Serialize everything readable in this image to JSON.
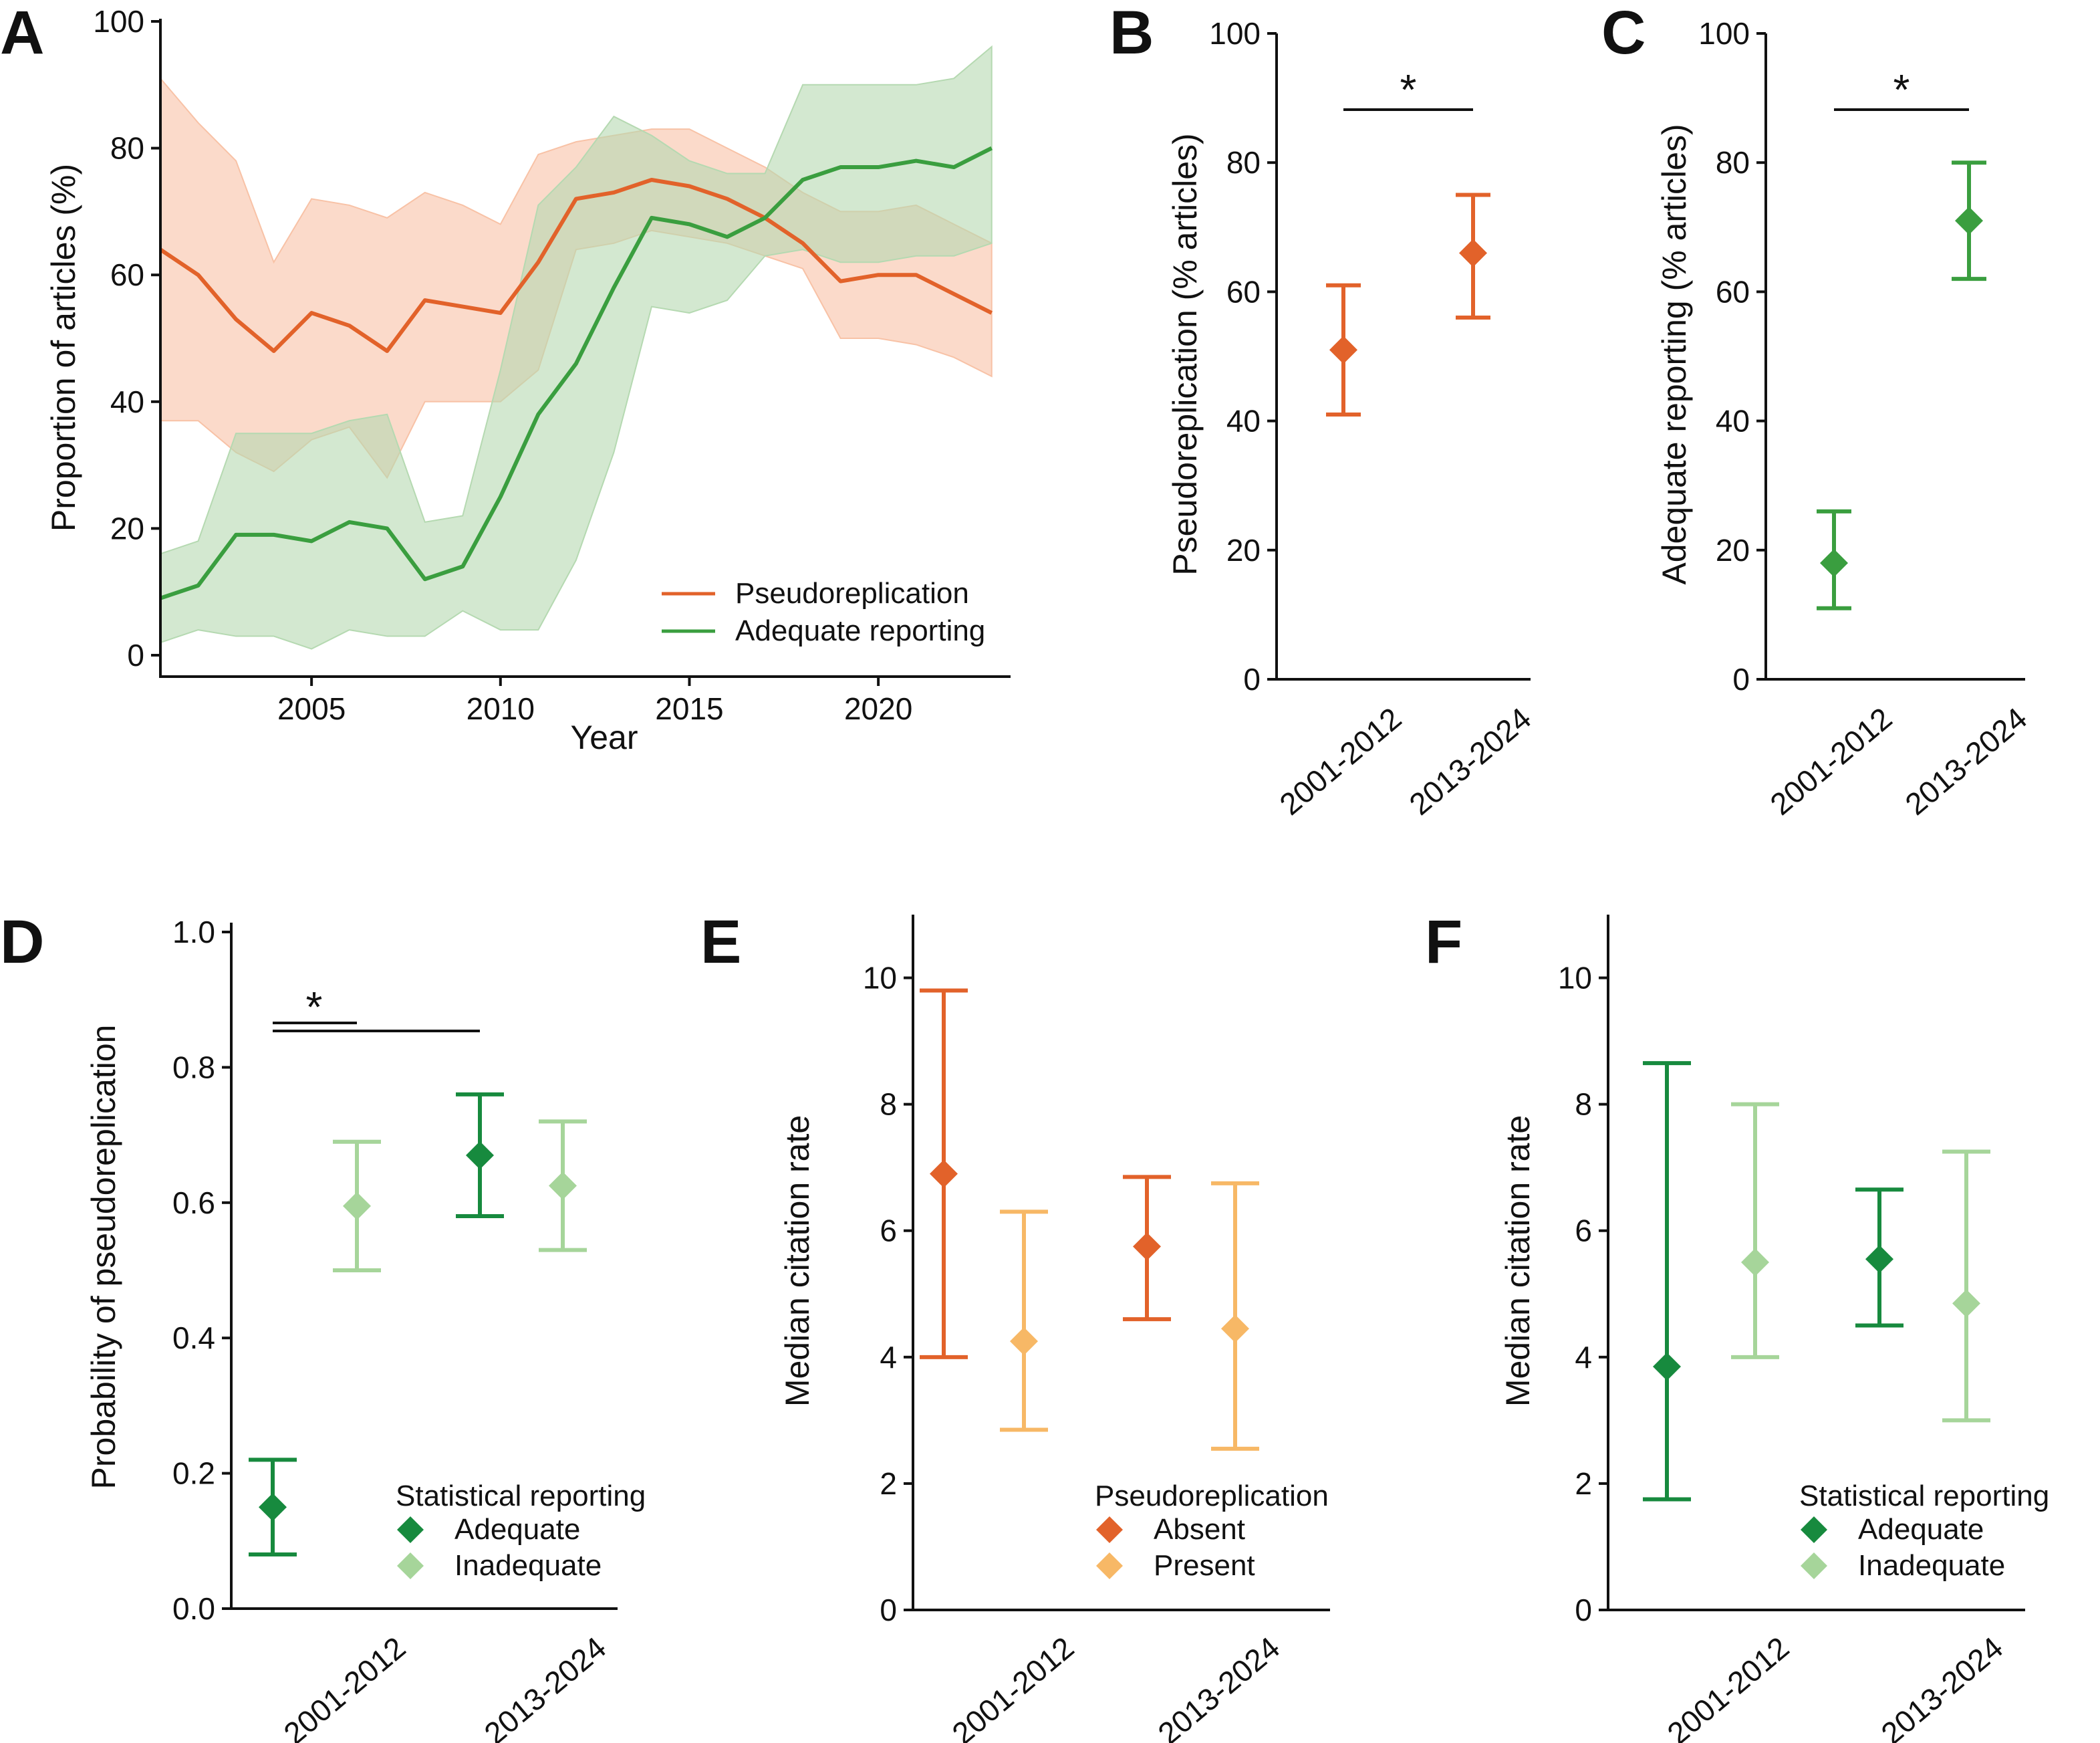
{
  "panels": {
    "A": {
      "letter": "A",
      "ylabel": "Proportion of articles (%)",
      "xlabel": "Year",
      "yticks": [
        "0",
        "20",
        "40",
        "60",
        "80",
        "100"
      ],
      "xticks": [
        "2005",
        "2010",
        "2015",
        "2020"
      ],
      "legend": [
        "Pseudoreplication",
        "Adequate reporting"
      ]
    },
    "B": {
      "letter": "B",
      "ylabel": "Pseudoreplication (% articles)",
      "yticks": [
        "0",
        "20",
        "40",
        "60",
        "80",
        "100"
      ],
      "xticks": [
        "2001-2012",
        "2013-2024"
      ],
      "star": "*"
    },
    "C": {
      "letter": "C",
      "ylabel": "Adequate reporting (% articles)",
      "yticks": [
        "0",
        "20",
        "40",
        "60",
        "80",
        "100"
      ],
      "xticks": [
        "2001-2012",
        "2013-2024"
      ],
      "star": "*"
    },
    "D": {
      "letter": "D",
      "ylabel": "Probability of pseudoreplication",
      "yticks": [
        "0.0",
        "0.2",
        "0.4",
        "0.6",
        "0.8",
        "1.0"
      ],
      "xticks": [
        "2001-2012",
        "2013-2024"
      ],
      "star": "*",
      "legend_title": "Statistical reporting",
      "legend": [
        "Adequate",
        "Inadequate"
      ]
    },
    "E": {
      "letter": "E",
      "ylabel": "Median citation rate",
      "yticks": [
        "0",
        "2",
        "4",
        "6",
        "8",
        "10"
      ],
      "xticks": [
        "2001-2012",
        "2013-2024"
      ],
      "legend_title": "Pseudoreplication",
      "legend": [
        "Absent",
        "Present"
      ]
    },
    "F": {
      "letter": "F",
      "ylabel": "Median citation rate",
      "yticks": [
        "0",
        "2",
        "4",
        "6",
        "8",
        "10"
      ],
      "xticks": [
        "2001-2012",
        "2013-2024"
      ],
      "legend_title": "Statistical reporting",
      "legend": [
        "Adequate",
        "Inadequate"
      ]
    }
  },
  "colors": {
    "orange": "#e2622a",
    "orange_band": "#f8c2a6",
    "green": "#3a9e3f",
    "green_band": "#b5d9b1",
    "dark_green": "#178a3e",
    "light_green": "#a6d59a",
    "light_orange": "#f7b866"
  },
  "chart_data": [
    {
      "panel": "A",
      "type": "line",
      "xlabel": "Year",
      "ylabel": "Proportion of articles (%)",
      "xlim": [
        2001,
        2023.5
      ],
      "ylim": [
        0,
        100
      ],
      "x": [
        2001,
        2002,
        2003,
        2004,
        2005,
        2006,
        2007,
        2008,
        2009,
        2010,
        2011,
        2012,
        2013,
        2014,
        2015,
        2016,
        2017,
        2018,
        2019,
        2020,
        2021,
        2022,
        2023
      ],
      "series": [
        {
          "name": "Pseudoreplication",
          "values": [
            64,
            60,
            53,
            48,
            54,
            52,
            48,
            56,
            55,
            54,
            62,
            72,
            73,
            75,
            74,
            72,
            69,
            65,
            59,
            60,
            60,
            57,
            54
          ],
          "lower": [
            37,
            37,
            32,
            29,
            34,
            36,
            28,
            40,
            40,
            40,
            45,
            64,
            65,
            67,
            66,
            65,
            63,
            61,
            50,
            50,
            49,
            47,
            44
          ],
          "upper": [
            91,
            84,
            78,
            62,
            72,
            71,
            69,
            73,
            71,
            68,
            79,
            81,
            82,
            83,
            83,
            80,
            77,
            73,
            70,
            70,
            71,
            68,
            65
          ]
        },
        {
          "name": "Adequate reporting",
          "values": [
            9,
            11,
            19,
            19,
            18,
            21,
            20,
            12,
            14,
            25,
            38,
            46,
            58,
            69,
            68,
            66,
            69,
            75,
            77,
            77,
            78,
            77,
            80
          ],
          "lower": [
            2,
            4,
            3,
            3,
            1,
            4,
            3,
            3,
            7,
            4,
            4,
            15,
            32,
            55,
            54,
            56,
            63,
            64,
            62,
            62,
            63,
            63,
            65
          ],
          "upper": [
            16,
            18,
            35,
            35,
            35,
            37,
            38,
            21,
            22,
            45,
            71,
            77,
            85,
            82,
            78,
            76,
            76,
            90,
            90,
            90,
            90,
            91,
            96
          ]
        }
      ]
    },
    {
      "panel": "B",
      "type": "scatter",
      "ylabel": "Pseudoreplication (% articles)",
      "ylim": [
        0,
        100
      ],
      "categories": [
        "2001-2012",
        "2013-2024"
      ],
      "values": [
        51,
        66
      ],
      "lower": [
        41,
        56
      ],
      "upper": [
        61,
        75
      ],
      "significance": "*"
    },
    {
      "panel": "C",
      "type": "scatter",
      "ylabel": "Adequate reporting (% articles)",
      "ylim": [
        0,
        100
      ],
      "categories": [
        "2001-2012",
        "2013-2024"
      ],
      "values": [
        18,
        71
      ],
      "lower": [
        11,
        62
      ],
      "upper": [
        26,
        80
      ],
      "significance": "*"
    },
    {
      "panel": "D",
      "type": "scatter",
      "ylabel": "Probability of pseudoreplication",
      "ylim": [
        0,
        1.0
      ],
      "categories": [
        "2001-2012",
        "2013-2024"
      ],
      "series": [
        {
          "name": "Adequate",
          "values": [
            0.15,
            0.67
          ],
          "lower": [
            0.08,
            0.58
          ],
          "upper": [
            0.22,
            0.76
          ]
        },
        {
          "name": "Inadequate",
          "values": [
            0.595,
            0.625
          ],
          "lower": [
            0.5,
            0.53
          ],
          "upper": [
            0.69,
            0.72
          ]
        }
      ],
      "significance": "*"
    },
    {
      "panel": "E",
      "type": "scatter",
      "ylabel": "Median citation rate",
      "ylim": [
        0,
        11
      ],
      "categories": [
        "2001-2012",
        "2013-2024"
      ],
      "series": [
        {
          "name": "Absent",
          "values": [
            6.9,
            5.75
          ],
          "lower": [
            4.0,
            4.6
          ],
          "upper": [
            9.8,
            6.85
          ]
        },
        {
          "name": "Present",
          "values": [
            4.25,
            4.45
          ],
          "lower": [
            2.85,
            2.55
          ],
          "upper": [
            6.3,
            6.75
          ]
        }
      ]
    },
    {
      "panel": "F",
      "type": "scatter",
      "ylabel": "Median citation rate",
      "ylim": [
        0,
        11
      ],
      "categories": [
        "2001-2012",
        "2013-2024"
      ],
      "series": [
        {
          "name": "Adequate",
          "values": [
            3.85,
            5.55
          ],
          "lower": [
            1.75,
            4.5
          ],
          "upper": [
            8.65,
            6.65
          ]
        },
        {
          "name": "Inadequate",
          "values": [
            5.5,
            4.85
          ],
          "lower": [
            4.0,
            3.0
          ],
          "upper": [
            8.0,
            7.25
          ]
        }
      ]
    }
  ]
}
